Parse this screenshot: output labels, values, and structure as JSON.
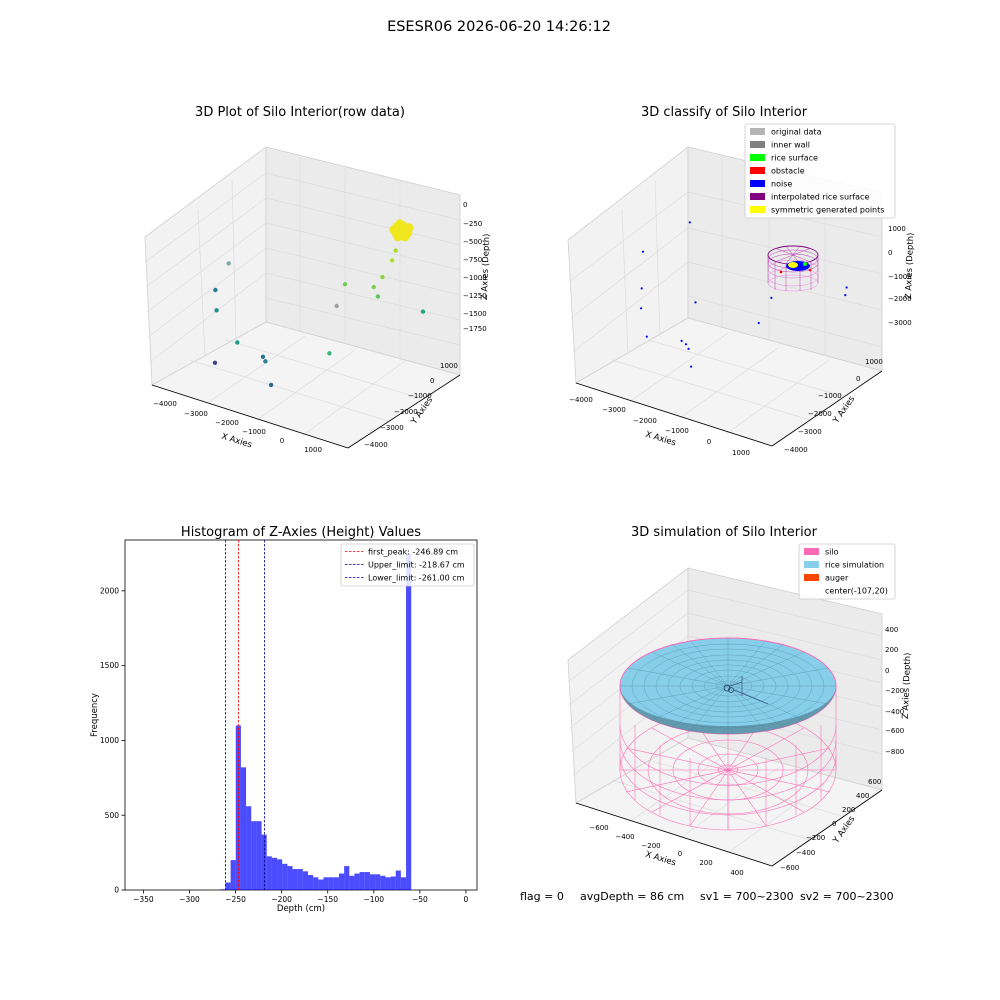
{
  "suptitle": "ESESR06 2026-06-20 14:26:12",
  "status": {
    "flag": "flag = 0",
    "avg_depth": "avgDepth = 86 cm",
    "sv1": "sv1 = 700~2300",
    "sv2": "sv2 = 700~2300"
  },
  "chart_data": [
    {
      "type": "scatter",
      "projection": "3d",
      "title": "3D Plot of Silo Interior(row data)",
      "xlabel": "X Axies",
      "ylabel": "Y Axies",
      "zlabel": "Z Axies (Depth)",
      "xticks": [
        "−4000",
        "−3000",
        "−2000",
        "−1000",
        "0",
        "1000"
      ],
      "yticks": [
        "1000",
        "0",
        "−1000",
        "−2000",
        "−3000",
        "−4000"
      ],
      "zticks": [
        "0",
        "−250",
        "−500",
        "−750",
        "−1000",
        "−1250",
        "−1500",
        "−1750"
      ],
      "colormap": "viridis",
      "points": [
        {
          "x": 600,
          "y": 300,
          "z": -250,
          "color": "#e8e41d"
        },
        {
          "x": 550,
          "y": 250,
          "z": -300,
          "color": "#dde318"
        },
        {
          "x": 650,
          "y": 350,
          "z": -200,
          "color": "#fde725"
        },
        {
          "x": 500,
          "y": 300,
          "z": -500,
          "color": "#a8db34"
        },
        {
          "x": 450,
          "y": 200,
          "z": -600,
          "color": "#b5de2b"
        },
        {
          "x": 200,
          "y": 100,
          "z": -800,
          "color": "#8ed645"
        },
        {
          "x": 50,
          "y": -100,
          "z": -900,
          "color": "#7ad151"
        },
        {
          "x": -800,
          "y": -200,
          "z": -950,
          "color": "#73d056"
        },
        {
          "x": 150,
          "y": -50,
          "z": -1000,
          "color": "#5ec962"
        },
        {
          "x": -1000,
          "y": -300,
          "z": -1200,
          "color": "#a0a0a0"
        },
        {
          "x": 1300,
          "y": 400,
          "z": -1100,
          "color": "#22a884"
        },
        {
          "x": -3500,
          "y": -1800,
          "z": -800,
          "color": "#7aa"
        },
        {
          "x": -3800,
          "y": -2000,
          "z": -1100,
          "color": "#2a788e"
        },
        {
          "x": -3700,
          "y": -2100,
          "z": -1300,
          "color": "#21918c"
        },
        {
          "x": -2800,
          "y": -2500,
          "z": -1500,
          "color": "#1f9e89"
        },
        {
          "x": -3200,
          "y": -3000,
          "z": -1700,
          "color": "#414487"
        },
        {
          "x": -1500,
          "y": -3300,
          "z": -1400,
          "color": "#2c728e"
        },
        {
          "x": -1300,
          "y": -3500,
          "z": -1400,
          "color": "#26828e"
        },
        {
          "x": -1000,
          "y": -3700,
          "z": -1600,
          "color": "#31688e"
        },
        {
          "x": -500,
          "y": -1500,
          "z": -1500,
          "color": "#35b779"
        }
      ]
    },
    {
      "type": "scatter",
      "projection": "3d",
      "title": "3D classify of Silo Interior",
      "xlabel": "X Axies",
      "ylabel": "Y Axies",
      "zlabel": "Z Axies (Depth)",
      "xticks": [
        "−4000",
        "−3000",
        "−2000",
        "−1000",
        "0",
        "1000"
      ],
      "yticks": [
        "1000",
        "0",
        "−1000",
        "−2000",
        "−3000",
        "−4000"
      ],
      "zticks": [
        "1000",
        "0",
        "−1000",
        "−2000",
        "−3000"
      ],
      "legend_position": "upper-right",
      "legend": [
        {
          "label": "original data",
          "color": "#b4b4b4"
        },
        {
          "label": "inner wall",
          "color": "#808080"
        },
        {
          "label": "rice surface",
          "color": "#00ff00"
        },
        {
          "label": "obstacle",
          "color": "#ff0000"
        },
        {
          "label": "noise",
          "color": "#0000ff"
        },
        {
          "label": "interpolated rice surface",
          "color": "#800080"
        },
        {
          "label": "symmetric generated points",
          "color": "#ffff00"
        }
      ],
      "noise_points": [
        {
          "x": -3900,
          "y": -1600,
          "z": -700
        },
        {
          "x": -3700,
          "y": -2000,
          "z": -1600
        },
        {
          "x": -3600,
          "y": -2200,
          "z": -2100
        },
        {
          "x": -3000,
          "y": -2900,
          "z": -2500
        },
        {
          "x": -1600,
          "y": -3400,
          "z": -2000
        },
        {
          "x": -1400,
          "y": -3500,
          "z": -2000
        },
        {
          "x": -1200,
          "y": -3700,
          "z": -2000
        },
        {
          "x": -1000,
          "y": -3900,
          "z": -2400
        },
        {
          "x": -2000,
          "y": -2000,
          "z": -1500
        },
        {
          "x": -300,
          "y": -1500,
          "z": -1800
        },
        {
          "x": 1400,
          "y": 300,
          "z": -900
        },
        {
          "x": 1300,
          "y": 400,
          "z": -1200
        },
        {
          "x": -3200,
          "y": -300,
          "z": -100
        },
        {
          "x": -200,
          "y": -1000,
          "z": -1200
        }
      ]
    },
    {
      "type": "bar",
      "title": "Histogram of Z-Axies (Height) Values",
      "xlabel": "Depth (cm)",
      "ylabel": "Frequency",
      "xlim": [
        -370,
        12
      ],
      "ylim": [
        0,
        2340
      ],
      "xticks": [
        -350,
        -300,
        -250,
        -200,
        -150,
        -100,
        -50,
        0
      ],
      "yticks": [
        0,
        500,
        1000,
        1500,
        2000
      ],
      "bin_width": 5.6,
      "bins_start": -266.6,
      "color": "#0000ff",
      "values": [
        5,
        50,
        200,
        1100,
        820,
        560,
        460,
        460,
        370,
        225,
        215,
        205,
        175,
        160,
        140,
        140,
        125,
        100,
        85,
        70,
        85,
        85,
        85,
        110,
        160,
        95,
        110,
        120,
        120,
        105,
        105,
        95,
        85,
        90,
        130,
        85,
        2250
      ],
      "legend_position": "upper-right",
      "lines": [
        {
          "label": "first_peak: -246.89 cm",
          "value": -246.89,
          "color": "#ff0000"
        },
        {
          "label": "Upper_limit: -218.67 cm",
          "value": -218.67,
          "color": "#00008b"
        },
        {
          "label": "Lower_limit: -261.00 cm",
          "value": -261.0,
          "color": "#0000cd"
        }
      ]
    },
    {
      "type": "area",
      "projection": "3d",
      "title": "3D simulation of Silo Interior",
      "xlabel": "X Axies",
      "ylabel": "Y Axies",
      "zlabel": "Z Axies (Depth)",
      "xticks": [
        "−600",
        "−400",
        "−200",
        "0",
        "200",
        "400"
      ],
      "yticks": [
        "600",
        "400",
        "200",
        "0",
        "−200",
        "−400",
        "−600"
      ],
      "zticks": [
        "400",
        "200",
        "0",
        "−200",
        "−400",
        "−600",
        "−800"
      ],
      "legend_position": "upper-right",
      "legend": [
        {
          "label": "silo",
          "color": "#ff69b4"
        },
        {
          "label": "rice simulation",
          "color": "#87ceeb"
        },
        {
          "label": "auger",
          "color": "#ff4500"
        },
        {
          "label": "center(-107,20)",
          "color": ""
        }
      ]
    }
  ]
}
